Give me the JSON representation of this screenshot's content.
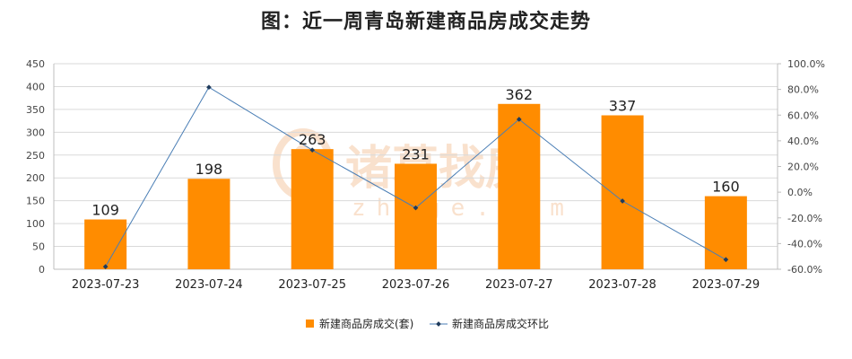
{
  "title": "图：近一周青岛新建商品房成交走势",
  "watermark": {
    "text": "诸葛找房",
    "sub": "zhuge.com"
  },
  "colors": {
    "bar": "#ff8c00",
    "line": "#4a7eb5",
    "marker": "#1f3b5c",
    "grid": "#d9d9d9",
    "axis": "#bfbfbf"
  },
  "chart_data": {
    "type": "bar",
    "categories": [
      "2023-07-23",
      "2023-07-24",
      "2023-07-25",
      "2023-07-26",
      "2023-07-27",
      "2023-07-28",
      "2023-07-29"
    ],
    "series": [
      {
        "name": "新建商品房成交(套)",
        "type": "bar",
        "axis": "left",
        "values": [
          109,
          198,
          263,
          231,
          362,
          337,
          160
        ]
      },
      {
        "name": "新建商品房成交环比",
        "type": "line",
        "axis": "right",
        "unit": "%",
        "values": [
          -58.0,
          81.7,
          32.8,
          -12.2,
          56.7,
          -6.9,
          -52.5
        ]
      }
    ],
    "ylim": [
      0,
      450
    ],
    "yticks": [
      0,
      50,
      100,
      150,
      200,
      250,
      300,
      350,
      400,
      450
    ],
    "y2lim": [
      -60,
      100
    ],
    "y2ticks": [
      "-60.0%",
      "-40.0%",
      "-20.0%",
      "0.0%",
      "20.0%",
      "40.0%",
      "60.0%",
      "80.0%",
      "100.0%"
    ],
    "grid": true,
    "legend_position": "bottom-center"
  }
}
